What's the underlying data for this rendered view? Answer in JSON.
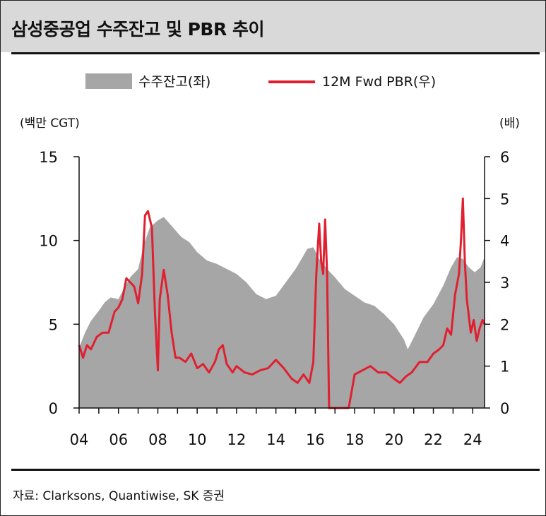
{
  "title": "삼성중공업 수주잔고 및 PBR 추이",
  "legend": {
    "area_label": "수주잔고(좌)",
    "line_label": "12M Fwd PBR(우)"
  },
  "units": {
    "left": "(백만 CGT)",
    "right": "(배)"
  },
  "source": "자료: Clarksons, Quantiwise, SK 증권",
  "colors": {
    "title_bar": "#d9d9d9",
    "area_fill": "#a6a6a6",
    "line": "#e02030"
  },
  "chart_data": {
    "type": "area",
    "xlabel": "",
    "x_ticks": [
      "04",
      "06",
      "08",
      "10",
      "12",
      "14",
      "16",
      "18",
      "20",
      "22",
      "24"
    ],
    "x_range": [
      2004.0,
      2024.6
    ],
    "y_left": {
      "ticks": [
        "15",
        "10",
        "5",
        "0"
      ],
      "range": [
        0,
        15
      ]
    },
    "y_right": {
      "ticks": [
        "6",
        "5",
        "4",
        "3",
        "2",
        "1",
        "0"
      ],
      "range": [
        0,
        6
      ]
    },
    "series": [
      {
        "name": "수주잔고(좌)",
        "type": "area",
        "axis": "left",
        "x": [
          2004.0,
          2004.3,
          2004.6,
          2005.0,
          2005.3,
          2005.6,
          2006.0,
          2006.3,
          2006.6,
          2007.0,
          2007.3,
          2007.6,
          2008.0,
          2008.3,
          2008.6,
          2008.9,
          2009.2,
          2009.6,
          2010.0,
          2010.5,
          2011.0,
          2011.5,
          2012.0,
          2012.5,
          2013.0,
          2013.5,
          2014.0,
          2014.5,
          2015.0,
          2015.3,
          2015.6,
          2015.9,
          2016.2,
          2016.6,
          2017.0,
          2017.5,
          2018.0,
          2018.5,
          2019.0,
          2019.5,
          2020.0,
          2020.5,
          2020.7,
          2021.0,
          2021.5,
          2022.0,
          2022.5,
          2022.9,
          2023.2,
          2023.5,
          2023.8,
          2024.1,
          2024.4,
          2024.6
        ],
        "values": [
          3.6,
          4.5,
          5.2,
          5.8,
          6.3,
          6.6,
          6.5,
          7.2,
          7.8,
          8.3,
          9.8,
          10.8,
          11.2,
          11.4,
          11.0,
          10.6,
          10.2,
          9.9,
          9.3,
          8.8,
          8.6,
          8.3,
          8.0,
          7.5,
          6.8,
          6.5,
          6.7,
          7.5,
          8.3,
          8.9,
          9.5,
          9.6,
          8.9,
          8.3,
          7.8,
          7.1,
          6.7,
          6.3,
          6.1,
          5.6,
          5.0,
          4.1,
          3.5,
          4.2,
          5.4,
          6.2,
          7.3,
          8.4,
          9.0,
          8.9,
          8.4,
          8.1,
          8.4,
          9.0
        ]
      },
      {
        "name": "12M Fwd PBR(우)",
        "type": "line",
        "axis": "right",
        "x": [
          2004.0,
          2004.2,
          2004.4,
          2004.6,
          2004.9,
          2005.2,
          2005.5,
          2005.8,
          2006.0,
          2006.2,
          2006.4,
          2006.6,
          2006.8,
          2007.0,
          2007.2,
          2007.35,
          2007.5,
          2007.7,
          2007.85,
          2008.0,
          2008.1,
          2008.3,
          2008.5,
          2008.7,
          2008.9,
          2009.1,
          2009.4,
          2009.7,
          2010.0,
          2010.3,
          2010.6,
          2010.9,
          2011.1,
          2011.3,
          2011.5,
          2011.8,
          2012.0,
          2012.4,
          2012.8,
          2013.2,
          2013.6,
          2014.0,
          2014.4,
          2014.8,
          2015.1,
          2015.4,
          2015.7,
          2015.9,
          2016.05,
          2016.2,
          2016.3,
          2016.4,
          2016.5,
          2016.6,
          2016.7,
          2016.8,
          2017.2,
          2017.5,
          2017.7,
          2018.0,
          2018.4,
          2018.8,
          2019.2,
          2019.6,
          2020.0,
          2020.3,
          2020.6,
          2020.9,
          2021.3,
          2021.7,
          2022.0,
          2022.3,
          2022.5,
          2022.7,
          2022.9,
          2023.1,
          2023.3,
          2023.4,
          2023.5,
          2023.6,
          2023.7,
          2023.8,
          2023.9,
          2024.05,
          2024.2,
          2024.35,
          2024.5,
          2024.6
        ],
        "values": [
          1.5,
          1.2,
          1.5,
          1.4,
          1.7,
          1.8,
          1.8,
          2.3,
          2.4,
          2.6,
          3.1,
          3.0,
          2.9,
          2.5,
          3.2,
          4.6,
          4.7,
          4.3,
          2.3,
          0.9,
          2.6,
          3.3,
          2.7,
          1.8,
          1.2,
          1.2,
          1.1,
          1.3,
          0.95,
          1.05,
          0.85,
          1.1,
          1.4,
          1.5,
          1.05,
          0.85,
          1.0,
          0.85,
          0.8,
          0.9,
          0.95,
          1.15,
          0.95,
          0.7,
          0.6,
          0.8,
          0.6,
          1.1,
          3.2,
          4.4,
          3.5,
          3.2,
          4.5,
          3.2,
          0.0,
          0.0,
          0.0,
          0.0,
          0.0,
          0.8,
          0.9,
          1.0,
          0.85,
          0.85,
          0.7,
          0.6,
          0.75,
          0.85,
          1.1,
          1.1,
          1.3,
          1.4,
          1.5,
          1.9,
          1.75,
          2.7,
          3.2,
          4.0,
          5.0,
          3.5,
          2.6,
          2.2,
          1.8,
          2.1,
          1.6,
          1.9,
          2.1,
          2.0
        ]
      }
    ]
  }
}
